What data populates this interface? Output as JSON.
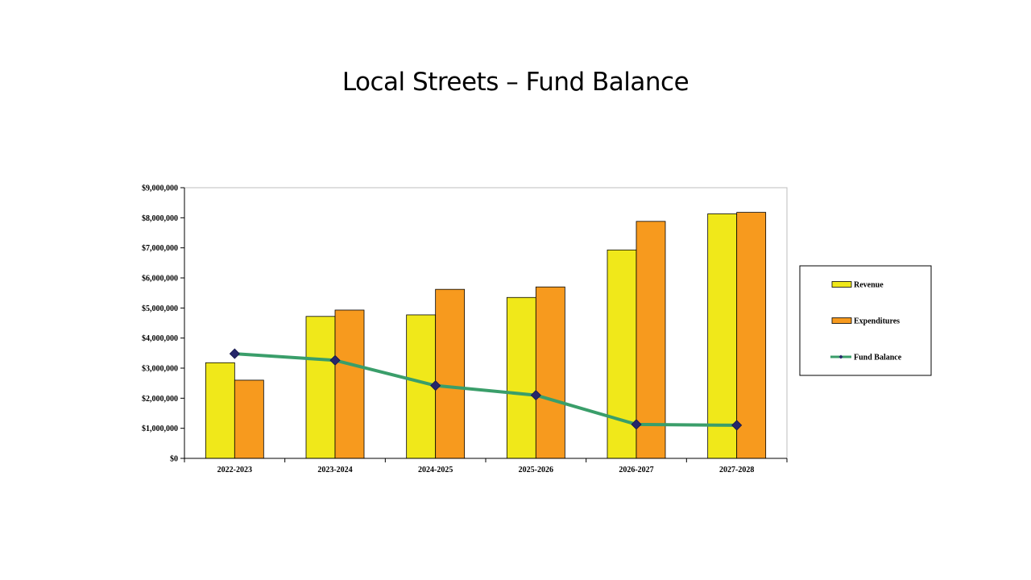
{
  "chart_data": {
    "type": "bar",
    "title": "Local Streets – Fund Balance",
    "categories": [
      "2022-2023",
      "2023-2024",
      "2024-2025",
      "2025-2026",
      "2026-2027",
      "2027-2028"
    ],
    "series": [
      {
        "name": "Revenue",
        "type": "bar",
        "color": "#f0e81a",
        "values": [
          3180000,
          4720000,
          4770000,
          5350000,
          6930000,
          8130000
        ]
      },
      {
        "name": "Expenditures",
        "type": "bar",
        "color": "#f79a1e",
        "values": [
          2600000,
          4930000,
          5620000,
          5700000,
          7880000,
          8180000
        ]
      },
      {
        "name": "Fund Balance",
        "type": "line",
        "color": "#3a9e6a",
        "marker_color": "#26276b",
        "values": [
          3480000,
          3260000,
          2420000,
          2100000,
          1130000,
          1100000
        ]
      }
    ],
    "ylim": [
      0,
      9000000
    ],
    "yticks": [
      0,
      1000000,
      2000000,
      3000000,
      4000000,
      5000000,
      6000000,
      7000000,
      8000000,
      9000000
    ],
    "ytick_labels": [
      "$0",
      "$1,000,000",
      "$2,000,000",
      "$3,000,000",
      "$4,000,000",
      "$5,000,000",
      "$6,000,000",
      "$7,000,000",
      "$8,000,000",
      "$9,000,000"
    ],
    "xlabel": "",
    "ylabel": "",
    "grid": false,
    "legend_position": "right"
  }
}
